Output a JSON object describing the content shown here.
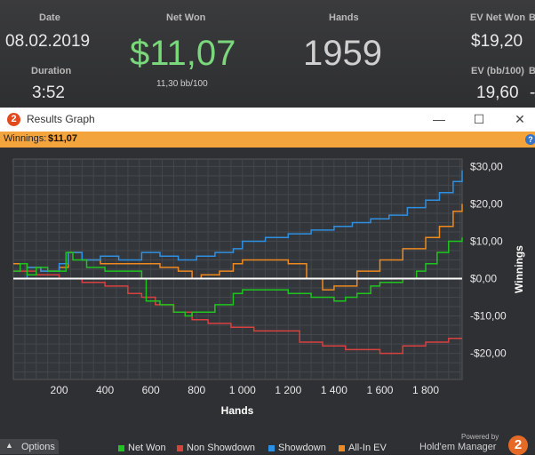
{
  "stats": {
    "date_label": "Date",
    "date_value": "08.02.2019",
    "duration_label": "Duration",
    "duration_value": "3:52",
    "net_won_label": "Net Won",
    "net_won_value": "$11,07",
    "bb100": "11,30 bb/100",
    "hands_label": "Hands",
    "hands_value": "1959",
    "ev_net_won_label": "EV Net Won",
    "ev_net_won_value": "$19,20",
    "ev_bb100_label": "EV (bb/100)",
    "ev_bb100_value": "19,60",
    "cut_label_b": "B",
    "cut_label_b2": "B",
    "cut_value": "-"
  },
  "window": {
    "title": "Results Graph",
    "icon": "2",
    "minimize": "—",
    "maximize": "☐",
    "close": "✕"
  },
  "banner": {
    "label": "Winnings:",
    "value": "$11,07",
    "help": "?"
  },
  "colors": {
    "net_won": "#1ec51e",
    "non_showdown": "#d94040",
    "showdown": "#2f8fe0",
    "all_in_ev": "#ee8a20"
  },
  "chart_data": {
    "type": "line",
    "xlabel": "Hands",
    "ylabel": "Winnings",
    "xlim": [
      0,
      1959
    ],
    "ylim": [
      -27,
      32
    ],
    "x_ticks": [
      200,
      400,
      600,
      800,
      1000,
      1200,
      1400,
      1600,
      1800
    ],
    "x_tick_labels": [
      "200",
      "400",
      "600",
      "800",
      "1 000",
      "1 200",
      "1 400",
      "1 600",
      "1 800"
    ],
    "y_ticks": [
      30,
      20,
      10,
      0,
      -10,
      -20
    ],
    "y_tick_labels": [
      "$30,00",
      "$20,00",
      "$10,00",
      "$0,00",
      "-$10,00",
      "-$20,00"
    ],
    "legend_position": "bottom",
    "series": [
      {
        "name": "Net Won",
        "color": "#1ec51e",
        "x": [
          0,
          30,
          60,
          100,
          150,
          200,
          230,
          260,
          320,
          400,
          480,
          560,
          580,
          640,
          700,
          750,
          780,
          800,
          880,
          960,
          1000,
          1100,
          1200,
          1300,
          1400,
          1450,
          1500,
          1560,
          1600,
          1650,
          1700,
          1760,
          1800,
          1850,
          1900,
          1959
        ],
        "y": [
          2,
          4,
          1,
          3,
          2,
          2,
          7,
          5,
          3,
          2,
          2,
          0,
          -6,
          -7,
          -9,
          -10,
          -9,
          -9,
          -7,
          -4,
          -3,
          -3,
          -4,
          -5,
          -6,
          -5,
          -4,
          -2,
          -1,
          -1,
          0,
          2,
          4,
          7,
          10,
          11
        ]
      },
      {
        "name": "Non Showdown",
        "color": "#d94040",
        "x": [
          0,
          100,
          200,
          300,
          400,
          500,
          560,
          620,
          700,
          780,
          850,
          950,
          1050,
          1150,
          1250,
          1350,
          1450,
          1550,
          1600,
          1700,
          1800,
          1900,
          1959
        ],
        "y": [
          2,
          1,
          0,
          -1,
          -2,
          -4,
          -5,
          -7,
          -9,
          -11,
          -12,
          -13,
          -14,
          -14,
          -17,
          -18,
          -19,
          -19,
          -20,
          -18,
          -17,
          -16,
          -16
        ]
      },
      {
        "name": "Showdown",
        "color": "#2f8fe0",
        "x": [
          0,
          60,
          120,
          200,
          240,
          300,
          380,
          460,
          560,
          640,
          720,
          800,
          880,
          960,
          1000,
          1100,
          1200,
          1300,
          1400,
          1480,
          1560,
          1640,
          1720,
          1800,
          1860,
          1920,
          1959
        ],
        "y": [
          0,
          3,
          2,
          4,
          7,
          5,
          6,
          5,
          7,
          6,
          5,
          6,
          7,
          8,
          10,
          11,
          12,
          13,
          14,
          15,
          16,
          17,
          19,
          21,
          23,
          26,
          29
        ]
      },
      {
        "name": "All-In EV",
        "color": "#ee8a20",
        "x": [
          0,
          60,
          120,
          200,
          240,
          300,
          380,
          460,
          560,
          640,
          720,
          780,
          820,
          900,
          960,
          1000,
          1100,
          1200,
          1280,
          1350,
          1400,
          1500,
          1600,
          1700,
          1800,
          1860,
          1920,
          1959
        ],
        "y": [
          4,
          3,
          2,
          3,
          7,
          5,
          4,
          4,
          4,
          3,
          2,
          0,
          1,
          2,
          4,
          5,
          5,
          4,
          0,
          -3,
          -2,
          2,
          5,
          8,
          11,
          14,
          18,
          20
        ]
      }
    ]
  },
  "footer": {
    "options_label": "Options",
    "legend": [
      "Net Won",
      "Non Showdown",
      "Showdown",
      "All-In EV"
    ],
    "powered_by": "Powered by",
    "brand": "Hold'em Manager",
    "logo": "2"
  }
}
